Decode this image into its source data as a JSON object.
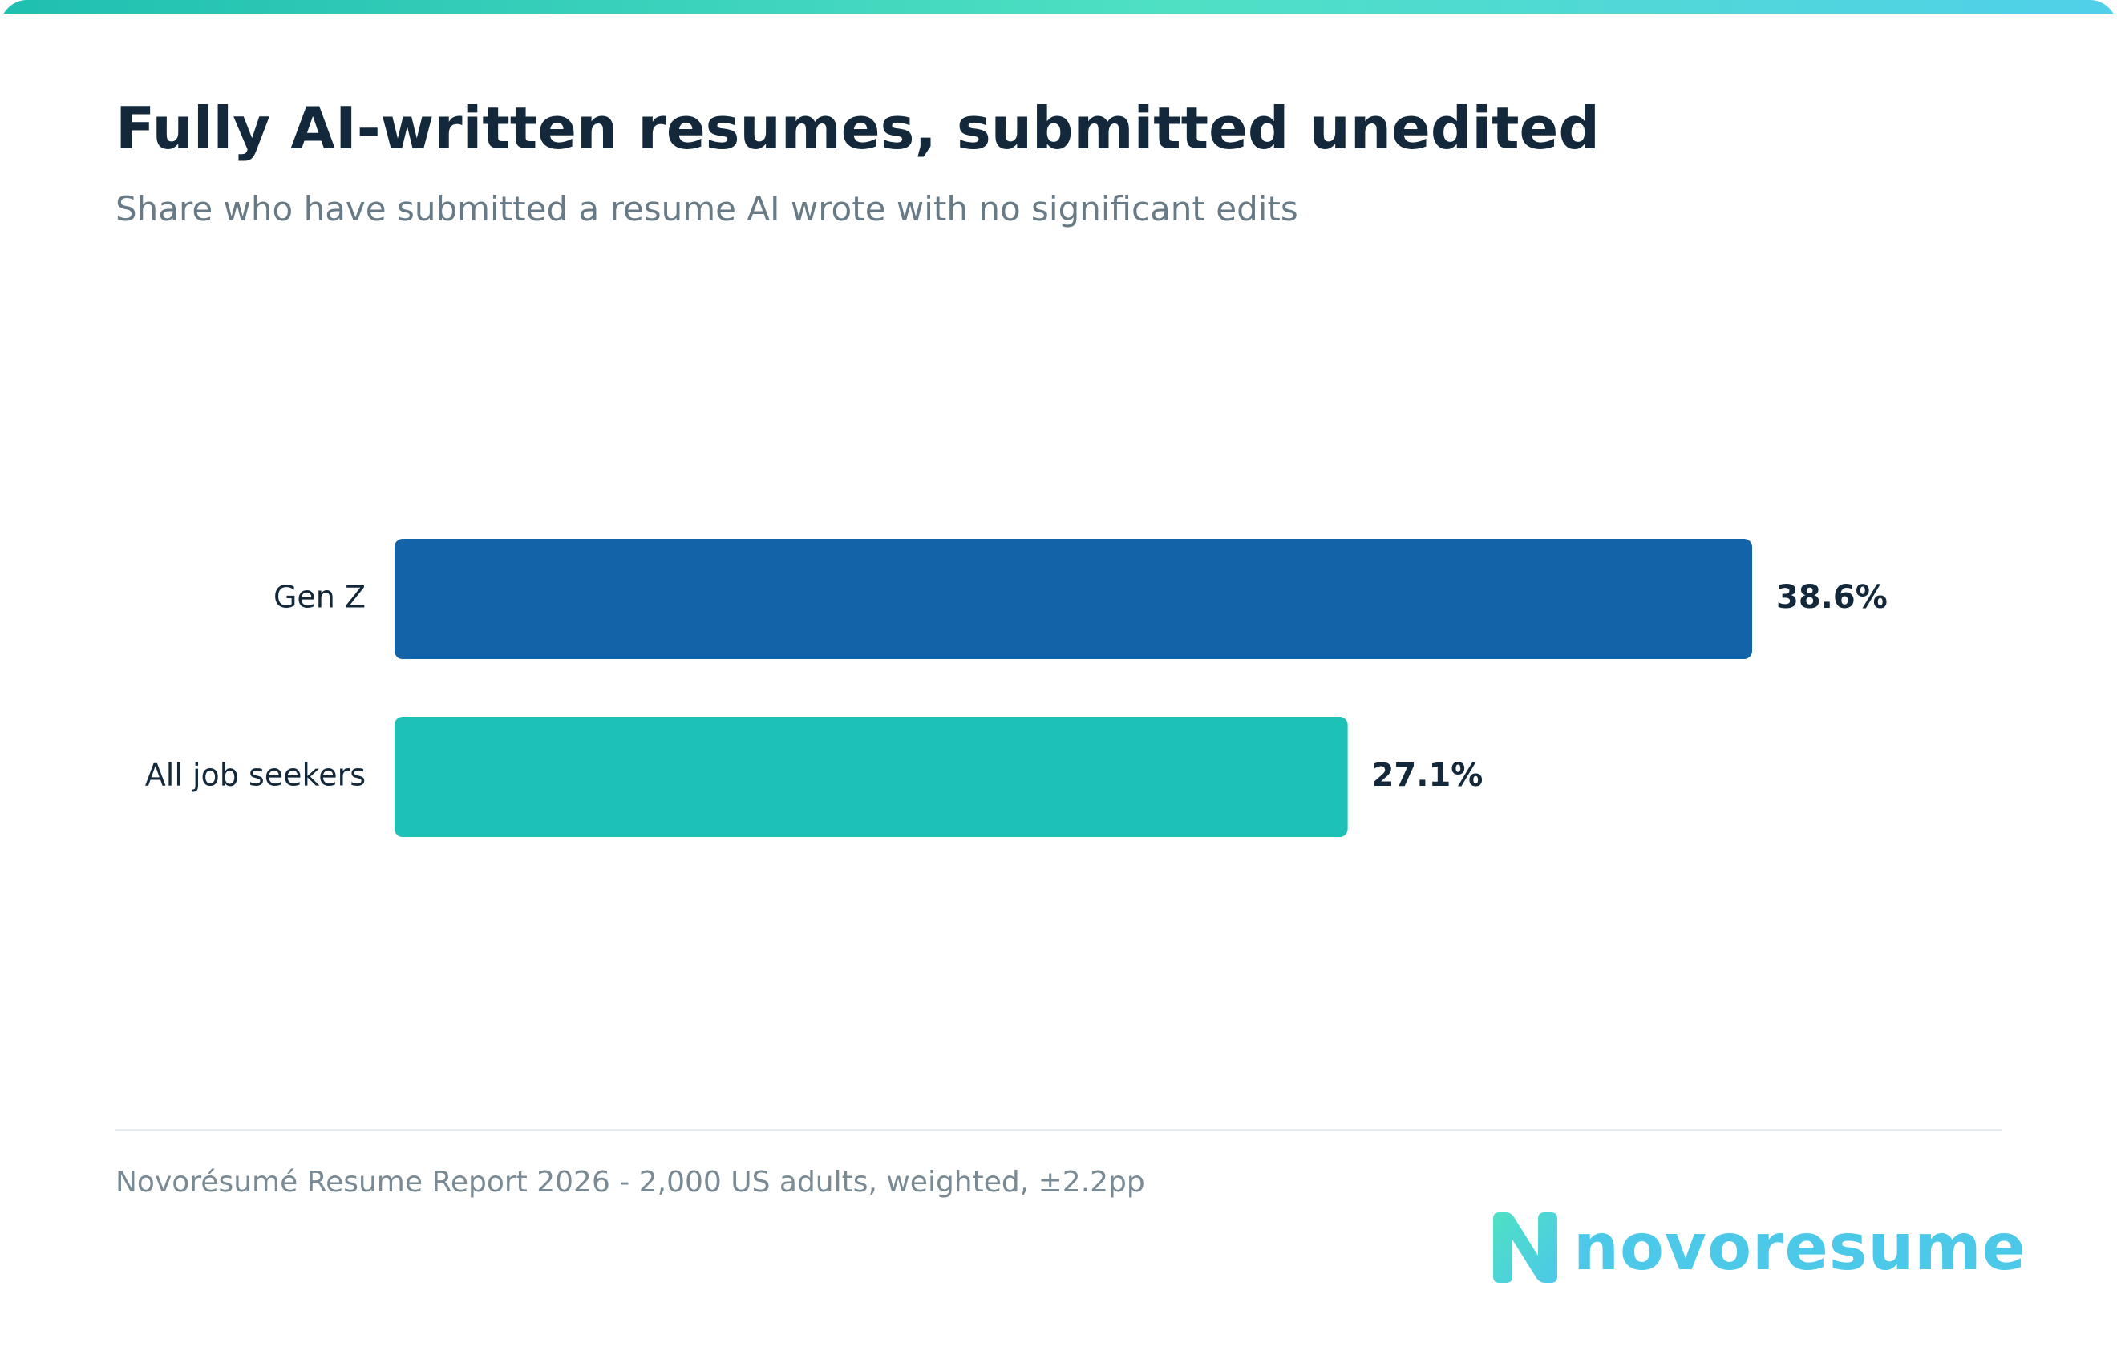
{
  "header": {
    "title": "Fully AI-written resumes, submitted unedited",
    "subtitle": "Share who have submitted a resume AI wrote with no significant edits"
  },
  "chart_data": {
    "type": "bar",
    "orientation": "horizontal",
    "categories": [
      "Gen Z",
      "All job seekers"
    ],
    "values": [
      38.6,
      27.1
    ],
    "value_labels": [
      "38.6%",
      "27.1%"
    ],
    "colors": [
      "#1363a8",
      "#1ec1b5"
    ],
    "xlim": [
      0,
      50
    ],
    "grid": false,
    "legend": "none"
  },
  "footer": {
    "source": "Novorésumé Resume Report 2026 - 2,000 US adults, weighted, ±2.2pp",
    "brand_name": "novoresume",
    "brand_color": "#4cc9e9"
  }
}
